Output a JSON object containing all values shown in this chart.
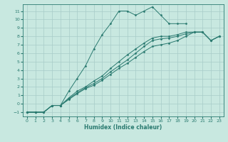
{
  "xlabel": "Humidex (Indice chaleur)",
  "bg_color": "#c8e8e0",
  "grid_color": "#a8ccc8",
  "line_color": "#2a7a70",
  "xlim": [
    -0.5,
    23.5
  ],
  "ylim": [
    -1.5,
    11.8
  ],
  "xticks": [
    0,
    1,
    2,
    3,
    4,
    5,
    6,
    7,
    8,
    9,
    10,
    11,
    12,
    13,
    14,
    15,
    16,
    17,
    18,
    19,
    20,
    21,
    22,
    23
  ],
  "yticks": [
    -1,
    0,
    1,
    2,
    3,
    4,
    5,
    6,
    7,
    8,
    9,
    10,
    11
  ],
  "lines": [
    {
      "x": [
        0,
        1,
        2,
        3,
        4,
        5,
        6,
        7,
        8,
        9,
        10,
        11,
        12,
        13,
        14,
        15,
        16,
        17,
        18,
        19,
        20,
        21,
        22,
        23
      ],
      "y": [
        -1,
        -1,
        -1,
        -0.2,
        -0.2,
        1.5,
        3.0,
        4.5,
        6.5,
        8.2,
        9.5,
        11.0,
        11.0,
        10.5,
        11.0,
        11.5,
        10.5,
        9.5,
        9.5,
        9.5,
        null,
        null,
        null,
        null
      ]
    },
    {
      "x": [
        0,
        1,
        2,
        3,
        4,
        5,
        6,
        7,
        8,
        9,
        10,
        11,
        12,
        13,
        14,
        15,
        16,
        17,
        18,
        19,
        20,
        21,
        22,
        23
      ],
      "y": [
        -1,
        -1,
        -1,
        -0.2,
        -0.2,
        0.5,
        1.2,
        1.8,
        2.2,
        2.8,
        3.5,
        4.2,
        4.8,
        5.5,
        6.2,
        6.8,
        7.0,
        7.2,
        7.5,
        8.0,
        8.5,
        8.5,
        7.5,
        8.0
      ]
    },
    {
      "x": [
        0,
        1,
        2,
        3,
        4,
        5,
        6,
        7,
        8,
        9,
        10,
        11,
        12,
        13,
        14,
        15,
        16,
        17,
        18,
        19,
        20,
        21,
        22,
        23
      ],
      "y": [
        -1,
        -1,
        -1,
        -0.2,
        -0.2,
        0.6,
        1.3,
        1.9,
        2.4,
        3.0,
        3.8,
        4.5,
        5.2,
        6.0,
        6.8,
        7.5,
        7.7,
        7.8,
        8.0,
        8.3,
        8.5,
        8.5,
        7.5,
        8.0
      ]
    },
    {
      "x": [
        0,
        1,
        2,
        3,
        4,
        5,
        6,
        7,
        8,
        9,
        10,
        11,
        12,
        13,
        14,
        15,
        16,
        17,
        18,
        19,
        20,
        21,
        22,
        23
      ],
      "y": [
        -1,
        -1,
        -1,
        -0.2,
        -0.2,
        0.7,
        1.5,
        2.0,
        2.7,
        3.3,
        4.2,
        5.0,
        5.8,
        6.5,
        7.2,
        7.8,
        8.0,
        8.0,
        8.2,
        8.5,
        8.5,
        8.5,
        7.5,
        8.0
      ]
    }
  ]
}
